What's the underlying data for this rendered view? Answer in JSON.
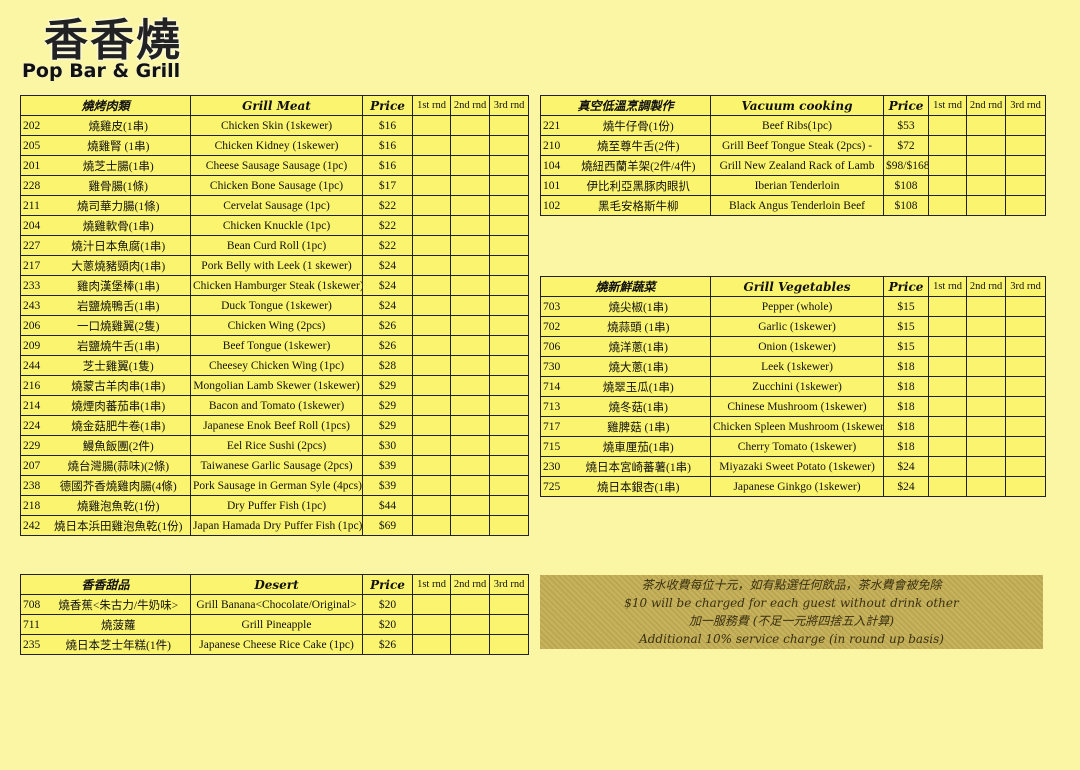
{
  "logo": {
    "chinese": "香香燒",
    "english": "Pop Bar & Grill"
  },
  "colors": {
    "page": "#fbf6a4",
    "cell": "#fbf46e",
    "notice": "#c7b35c"
  },
  "round_headers": [
    "1st rnd",
    "2nd rnd",
    "3rd rnd"
  ],
  "tables": {
    "grill_meat": {
      "header_cn": "燒烤肉類",
      "header_en": "Grill Meat",
      "header_price": "Price",
      "rows": [
        [
          "202",
          "燒雞皮(1串)",
          "Chicken Skin (1skewer)",
          "$16"
        ],
        [
          "205",
          "燒雞腎 (1串)",
          "Chicken Kidney (1skewer)",
          "$16"
        ],
        [
          "201",
          "燒芝士腸(1串)",
          "Cheese Sausage Sausage (1pc)",
          "$16"
        ],
        [
          "228",
          "雞骨腸(1條)",
          "Chicken Bone Sausage (1pc)",
          "$17"
        ],
        [
          "211",
          "燒司華力腸(1條)",
          "Cervelat Sausage (1pc)",
          "$22"
        ],
        [
          "204",
          "燒雞軟骨(1串)",
          "Chicken Knuckle (1pc)",
          "$22"
        ],
        [
          "227",
          "燒汁日本魚腐(1串)",
          "Bean Curd Roll (1pc)",
          "$22"
        ],
        [
          "217",
          "大蔥燒豬頸肉(1串)",
          "Pork Belly with Leek (1 skewer)",
          "$24"
        ],
        [
          "233",
          "雞肉漢堡棒(1串)",
          "Chicken Hamburger Steak (1skewer)",
          "$24"
        ],
        [
          "243",
          "岩鹽燒鴨舌(1串)",
          "Duck Tongue (1skewer)",
          "$24"
        ],
        [
          "206",
          "一口燒雞翼(2隻)",
          "Chicken Wing (2pcs)",
          "$26"
        ],
        [
          "209",
          "岩鹽燒牛舌(1串)",
          "Beef Tongue (1skewer)",
          "$26"
        ],
        [
          "244",
          "芝士雞翼(1隻)",
          "Cheesey Chicken Wing (1pc)",
          "$28"
        ],
        [
          "216",
          "燒蒙古羊肉串(1串)",
          "Mongolian Lamb Skewer (1skewer)",
          "$29"
        ],
        [
          "214",
          "燒煙肉蕃茄串(1串)",
          "Bacon and Tomato (1skewer)",
          "$29"
        ],
        [
          "224",
          "燒金菇肥牛卷(1串)",
          "Japanese Enok Beef Roll (1pcs)",
          "$29"
        ],
        [
          "229",
          "鰻魚飯團(2件)",
          "Eel Rice Sushi (2pcs)",
          "$30"
        ],
        [
          "207",
          "燒台灣腸(蒜味)(2條)",
          "Taiwanese Garlic Sausage (2pcs)",
          "$39"
        ],
        [
          "238",
          "德國芥香燒雞肉腸(4條)",
          "Pork Sausage in German Syle (4pcs)",
          "$39"
        ],
        [
          "218",
          "燒雞泡魚乾(1份)",
          "Dry Puffer Fish (1pc)",
          "$44"
        ],
        [
          "242",
          "燒日本浜田雞泡魚乾(1份)",
          "Japan Hamada Dry Puffer Fish (1pc)",
          "$69"
        ]
      ]
    },
    "vacuum": {
      "header_cn": "真空低溫烹調製作",
      "header_en": "Vacuum cooking",
      "header_price": "Price",
      "rows": [
        [
          "221",
          "燒牛仔骨(1份)",
          "Beef Ribs(1pc)",
          "$53"
        ],
        [
          "210",
          "燒至尊牛舌(2件)",
          "Grill Beef Tongue Steak (2pcs) -",
          "$72"
        ],
        [
          "104",
          "燒紐西蘭羊架(2件/4件)",
          "Grill New Zealand Rack of Lamb",
          "$98/$168"
        ],
        [
          "101",
          "伊比利亞黑豚肉眼扒",
          "Iberian Tenderloin",
          "$108"
        ],
        [
          "102",
          "黑毛安格斯牛柳",
          "Black Angus Tenderloin Beef",
          "$108"
        ]
      ]
    },
    "vegetables": {
      "header_cn": "燒新鮮蔬菜",
      "header_en": "Grill Vegetables",
      "header_price": "Price",
      "rows": [
        [
          "703",
          "燒尖椒(1串)",
          "Pepper (whole)",
          "$15"
        ],
        [
          "702",
          "燒蒜頭 (1串)",
          "Garlic (1skewer)",
          "$15"
        ],
        [
          "706",
          "燒洋蔥(1串)",
          "Onion (1skewer)",
          "$15"
        ],
        [
          "730",
          "燒大蔥(1串)",
          "Leek (1skewer)",
          "$18"
        ],
        [
          "714",
          "燒翠玉瓜(1串)",
          "Zucchini (1skewer)",
          "$18"
        ],
        [
          "713",
          "燒冬菇(1串)",
          "Chinese Mushroom (1skewer)",
          "$18"
        ],
        [
          "717",
          "雞脾菇 (1串)",
          "Chicken Spleen Mushroom (1skewer)",
          "$18"
        ],
        [
          "715",
          "燒車厘茄(1串)",
          "Cherry Tomato (1skewer)",
          "$18"
        ],
        [
          "230",
          "燒日本宮崎蕃薯(1串)",
          "Miyazaki Sweet Potato (1skewer)",
          "$24"
        ],
        [
          "725",
          "燒日本銀杏(1串)",
          "Japanese Ginkgo (1skewer)",
          "$24"
        ]
      ]
    },
    "desert": {
      "header_cn": "香香甜品",
      "header_en": "Desert",
      "header_price": "Price",
      "rows": [
        [
          "708",
          "燒香蕉<朱古力/牛奶味>",
          "Grill Banana<Chocolate/Original>",
          "$20"
        ],
        [
          "711",
          "燒菠蘿",
          "Grill Pineapple",
          "$20"
        ],
        [
          "235",
          "燒日本芝士年糕(1件)",
          "Japanese Cheese Rice Cake (1pc)",
          "$26"
        ]
      ]
    }
  },
  "notice": [
    "茶水收費每位十元，如有點選任何飲品，茶水費會被免除",
    "$10 will be charged for each guest without drink other",
    "加一服務費 (不足一元將四捨五入計算)",
    "Additional 10% service charge (in round up basis)"
  ]
}
